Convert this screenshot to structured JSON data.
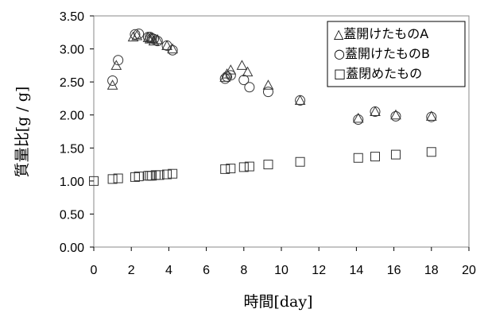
{
  "chart_data": {
    "type": "scatter",
    "xlabel": "時間[day]",
    "ylabel": "質量比[g / g]",
    "xlim": [
      0,
      20
    ],
    "ylim": [
      0,
      3.5
    ],
    "xticks": [
      0,
      2,
      4,
      6,
      8,
      10,
      12,
      14,
      16,
      18,
      20
    ],
    "yticks": [
      0.0,
      0.5,
      1.0,
      1.5,
      2.0,
      2.5,
      3.0,
      3.5
    ],
    "xtick_labels": [
      "0",
      "2",
      "4",
      "6",
      "8",
      "10",
      "12",
      "14",
      "16",
      "18",
      "20"
    ],
    "ytick_labels": [
      "0.00",
      "0.50",
      "1.00",
      "1.50",
      "2.00",
      "2.50",
      "3.00",
      "3.50"
    ],
    "grid": false,
    "legend_position": "top-right",
    "series": [
      {
        "name": "△蓋開けたものA",
        "marker": "triangle",
        "x": [
          1.0,
          1.2,
          2.1,
          2.3,
          2.9,
          3.0,
          3.1,
          3.2,
          3.4,
          3.9,
          4.2,
          7.0,
          7.1,
          7.3,
          7.9,
          8.2,
          9.3,
          11.0,
          14.1,
          15.0,
          16.1,
          18.0
        ],
        "y": [
          2.45,
          2.75,
          3.18,
          3.2,
          3.17,
          3.15,
          3.16,
          3.12,
          3.14,
          3.05,
          3.0,
          2.57,
          2.62,
          2.68,
          2.75,
          2.65,
          2.45,
          2.22,
          1.95,
          2.05,
          2.0,
          1.98
        ]
      },
      {
        "name": "○蓋開けたものB",
        "marker": "circle",
        "x": [
          1.0,
          1.3,
          2.2,
          2.4,
          2.9,
          3.0,
          3.1,
          3.2,
          3.4,
          3.9,
          4.2,
          7.0,
          7.1,
          7.3,
          8.0,
          8.3,
          9.3,
          11.0,
          14.1,
          15.0,
          16.1,
          18.0
        ],
        "y": [
          2.52,
          2.83,
          3.22,
          3.23,
          3.18,
          3.18,
          3.16,
          3.15,
          3.12,
          3.05,
          2.98,
          2.55,
          2.58,
          2.6,
          2.53,
          2.42,
          2.35,
          2.22,
          1.93,
          2.05,
          1.98,
          1.97
        ]
      },
      {
        "name": "□蓋閉めたもの",
        "marker": "square",
        "x": [
          0.0,
          1.0,
          1.3,
          2.2,
          2.4,
          2.9,
          3.0,
          3.1,
          3.3,
          3.5,
          3.9,
          4.2,
          7.0,
          7.3,
          8.0,
          8.3,
          9.3,
          11.0,
          14.1,
          15.0,
          16.1,
          18.0
        ],
        "y": [
          1.0,
          1.03,
          1.04,
          1.06,
          1.07,
          1.08,
          1.08,
          1.08,
          1.09,
          1.09,
          1.1,
          1.11,
          1.18,
          1.19,
          1.21,
          1.22,
          1.25,
          1.29,
          1.35,
          1.37,
          1.4,
          1.44
        ]
      }
    ]
  }
}
